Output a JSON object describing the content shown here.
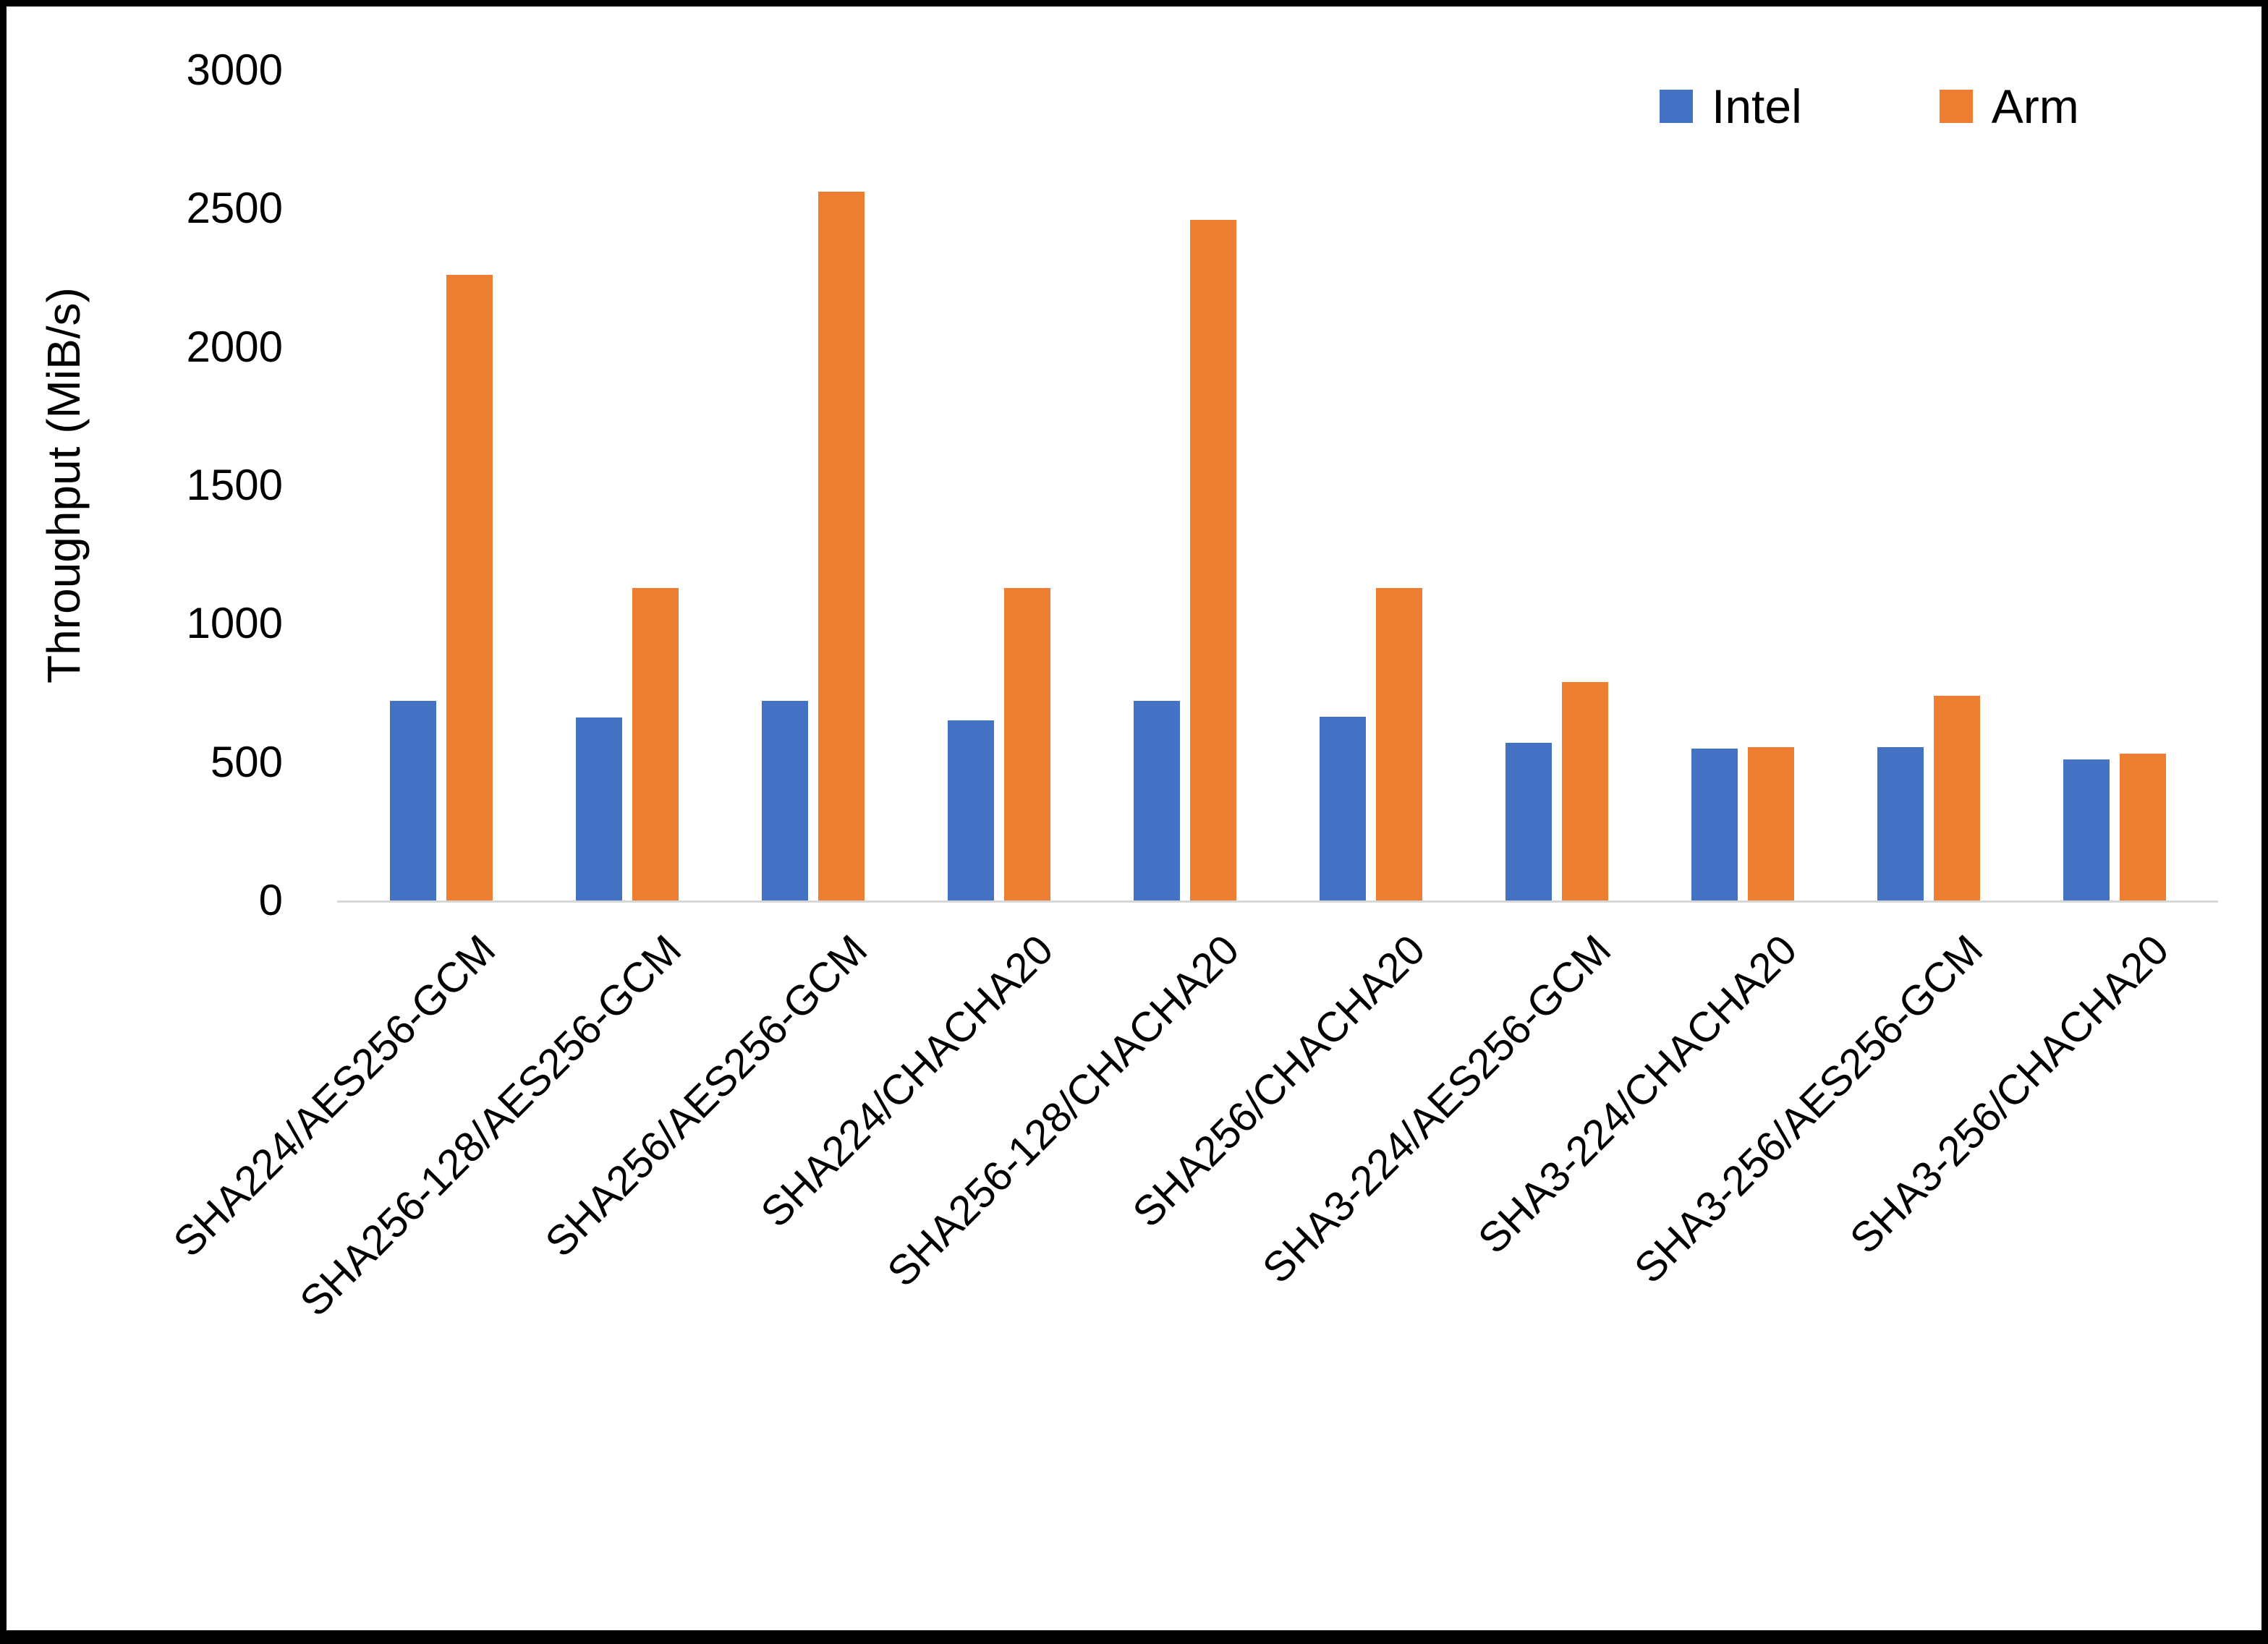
{
  "chart_data": {
    "type": "bar",
    "title": "",
    "xlabel": "",
    "ylabel": "Throughput (MiB/s)",
    "ylim": [
      0,
      3000
    ],
    "yticks": [
      0,
      500,
      1000,
      1500,
      2000,
      2500,
      3000
    ],
    "grid": false,
    "legend_position": "top-right",
    "categories": [
      "SHA224/AES256-GCM",
      "SHA256-128/AES256-GCM",
      "SHA256/AES256-GCM",
      "SHA224/CHACHA20",
      "SHA256-128/CHACHA20",
      "SHA256/CHACHA20",
      "SHA3-224/AES256-GCM",
      "SHA3-224/CHACHA20",
      "SHA3-256/AES256-GCM",
      "SHA3-256/CHACHA20"
    ],
    "series": [
      {
        "name": "Intel",
        "color": "#4472C4",
        "values": [
          720,
          660,
          720,
          650,
          720,
          665,
          570,
          550,
          555,
          510
        ]
      },
      {
        "name": "Arm",
        "color": "#ED7D31",
        "values": [
          2260,
          1130,
          2560,
          1130,
          2460,
          1130,
          790,
          555,
          740,
          530
        ]
      }
    ]
  }
}
